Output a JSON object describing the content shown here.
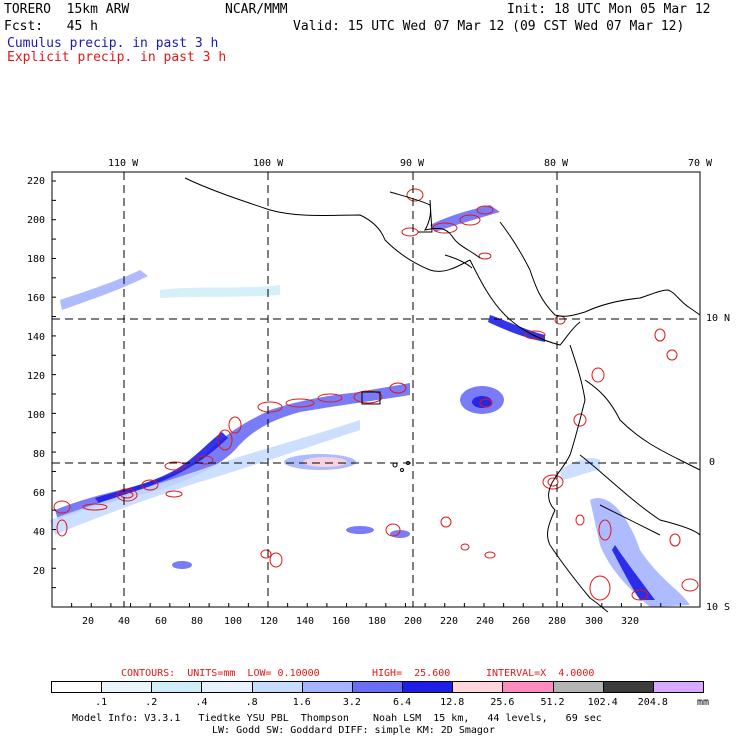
{
  "header": {
    "model": "TORERO  15km ARW",
    "org": "NCAR/MMM",
    "init": "Init: 18 UTC Mon 05 Mar 12",
    "fcst": "Fcst:   45 h",
    "valid": "Valid: 15 UTC Wed 07 Mar 12 (09 CST Wed 07 Mar 12)",
    "line_cumulus": "Cumulus precip. in past 3 h",
    "line_explicit": "Explicit precip. in past 3 h"
  },
  "colors": {
    "cumulus_text": "#1a1ab8",
    "explicit_text": "#e01818",
    "contour": "#e01818",
    "coast": "#000000",
    "grid": "#000000"
  },
  "axes": {
    "top_lon": [
      "110 W",
      "100 W",
      "90 W",
      "80 W",
      "70 W"
    ],
    "right_lat": [
      "10 N",
      "0",
      "10 S"
    ],
    "left_ticks": [
      "220",
      "200",
      "180",
      "160",
      "140",
      "120",
      "100",
      "80",
      "60",
      "40",
      "20"
    ],
    "bottom_ticks": [
      "20",
      "40",
      "60",
      "80",
      "100",
      "120",
      "140",
      "160",
      "180",
      "200",
      "220",
      "240",
      "260",
      "280",
      "300",
      "320"
    ]
  },
  "contour_info": {
    "label": "CONTOURS:  UNITS=mm  LOW= 0.10000",
    "high": "HIGH=  25.600",
    "interval": "INTERVAL=X  4.0000"
  },
  "colorbar": {
    "labels": [
      ".1",
      ".2",
      ".4",
      ".8",
      "1.6",
      "3.2",
      "6.4",
      "12.8",
      "25.6",
      "51.2",
      "102.4",
      "204.8"
    ],
    "unit": "mm",
    "colors": [
      "#ffffff",
      "#eaf5fb",
      "#d0eef8",
      "#e6f2ff",
      "#c7dcff",
      "#a6b4ff",
      "#6a6ef5",
      "#1e1ee6",
      "#ffd6dc",
      "#ff8cc0",
      "#b4b4b4",
      "#3c3c3c",
      "#d9a8ff"
    ]
  },
  "footer": {
    "line1": "Model Info: V3.3.1   Tiedtke YSU PBL  Thompson    Noah LSM  15 km,   44 levels,   69 sec",
    "line2": "LW: Godd SW: Goddard DIFF: simple KM: 2D Smagor"
  }
}
